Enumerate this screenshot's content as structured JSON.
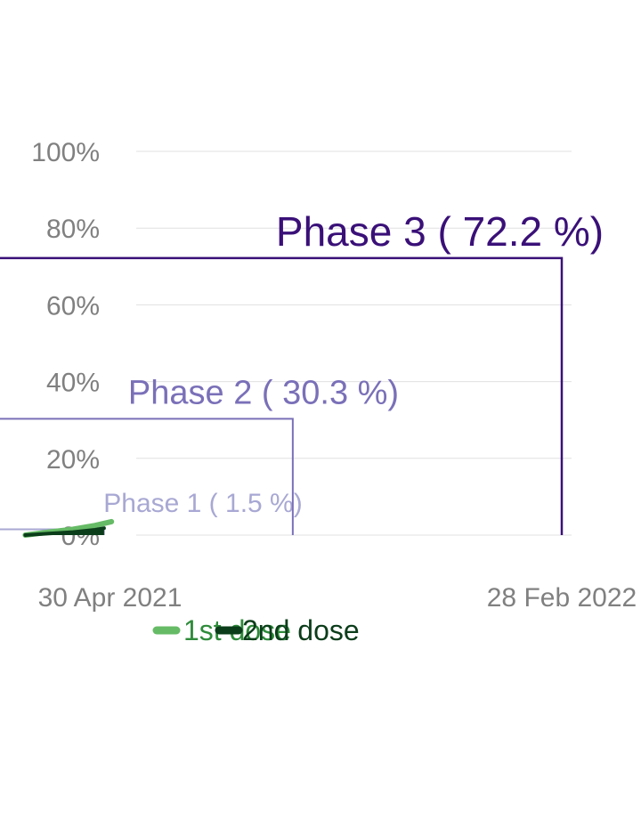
{
  "chart_data": {
    "type": "line",
    "title": "",
    "xlabel": "",
    "ylabel": "",
    "ylim": [
      0,
      1
    ],
    "y_ticks": [
      {
        "value": 0,
        "label": "0%"
      },
      {
        "value": 0.2,
        "label": "20%"
      },
      {
        "value": 0.4,
        "label": "40%"
      },
      {
        "value": 0.6,
        "label": "60%"
      },
      {
        "value": 0.8,
        "label": "80%"
      },
      {
        "value": 1.0,
        "label": "100%"
      }
    ],
    "x_range": [
      "2021-02-15",
      "2022-02-28"
    ],
    "x_ticks": [
      {
        "value": "2021-04-30",
        "label": "30 Apr 2021"
      },
      {
        "value": "2022-02-28",
        "label": "28 Feb 2022"
      }
    ],
    "grid": true,
    "legend": "bottom",
    "series": [
      {
        "name": "1st dose",
        "color": "#66bb66",
        "label_color": "#2e8b3a",
        "points": [
          {
            "x": "2021-03-04",
            "y": 0.0
          },
          {
            "x": "2021-03-20",
            "y": 0.008
          },
          {
            "x": "2021-04-05",
            "y": 0.015
          },
          {
            "x": "2021-04-20",
            "y": 0.025
          },
          {
            "x": "2021-05-01",
            "y": 0.035
          }
        ]
      },
      {
        "name": "2nd dose",
        "color": "#0b3d1a",
        "label_color": "#0b3d1a",
        "points": [
          {
            "x": "2021-03-04",
            "y": 0.0
          },
          {
            "x": "2021-03-20",
            "y": 0.004
          },
          {
            "x": "2021-04-05",
            "y": 0.008
          },
          {
            "x": "2021-04-20",
            "y": 0.014
          },
          {
            "x": "2021-04-26",
            "y": 0.018
          }
        ]
      }
    ],
    "phases": [
      {
        "label": "Phase 1  ( 1.5 %)",
        "target": 0.015,
        "end": "2021-04-26",
        "color": "#a8a8d4"
      },
      {
        "label": "Phase 2  ( 30.3 %)",
        "target": 0.303,
        "end": "2021-08-31",
        "color": "#7a70b8"
      },
      {
        "label": "Phase 3  ( 72.2 %)",
        "target": 0.722,
        "end": "2022-02-28",
        "color": "#3a1078"
      }
    ]
  }
}
